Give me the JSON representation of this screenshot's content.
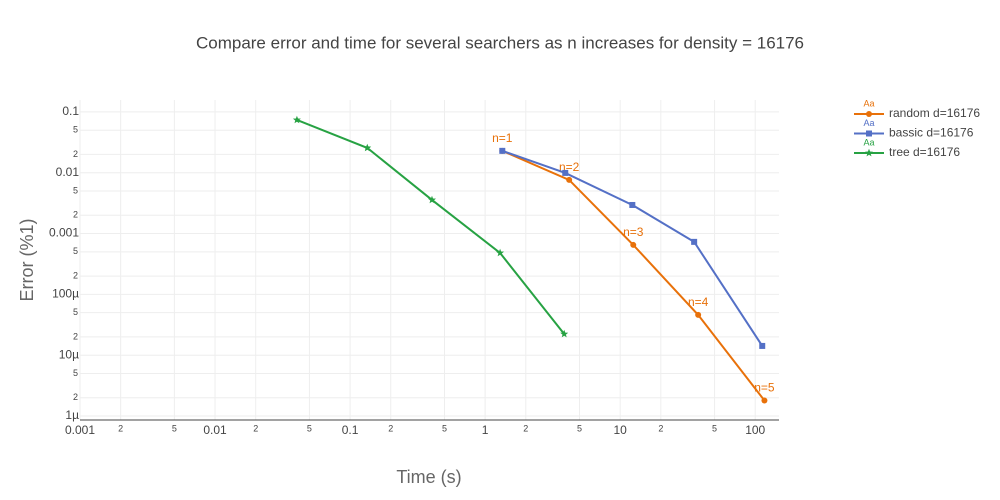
{
  "chart_data": {
    "type": "line",
    "title": "Compare error and time for several searchers as n increases for density = 16176",
    "x_label": "Time (s)",
    "y_label": "Error (%1)",
    "x_log": true,
    "y_log": true,
    "grid": true,
    "legend_position": "top-right",
    "legend_symbol_text": "Aa",
    "xlim": [
      0.001,
      150
    ],
    "ylim": [
      8.6e-07,
      0.157
    ],
    "xticks": [
      0.001,
      {
        "value": 0.002,
        "label": "2"
      },
      {
        "value": 0.005,
        "label": "5"
      },
      0.01,
      {
        "value": 0.02,
        "label": "2"
      },
      {
        "value": 0.05,
        "label": "5"
      },
      0.1,
      {
        "value": 0.2,
        "label": "2"
      },
      {
        "value": 0.5,
        "label": "5"
      },
      1,
      {
        "value": 2,
        "label": "2"
      },
      {
        "value": 5,
        "label": "5"
      },
      10,
      {
        "value": 20,
        "label": "2"
      },
      {
        "value": 50,
        "label": "5"
      },
      100
    ],
    "yticks": [
      0.1,
      {
        "value": 0.05,
        "label": "5"
      },
      {
        "value": 0.02,
        "label": "2"
      },
      0.01,
      {
        "value": 0.005,
        "label": "5"
      },
      {
        "value": 0.002,
        "label": "2"
      },
      0.001,
      {
        "value": 0.0005,
        "label": "5"
      },
      {
        "value": 0.0002,
        "label": "2"
      },
      {
        "value": 0.0001,
        "label": "100µ"
      },
      {
        "value": 5e-05,
        "label": "5"
      },
      {
        "value": 2e-05,
        "label": "2"
      },
      {
        "value": 1e-05,
        "label": "10µ"
      },
      {
        "value": 5e-06,
        "label": "5"
      },
      {
        "value": 2e-06,
        "label": "2"
      },
      {
        "value": 1e-06,
        "label": "1µ"
      }
    ],
    "series": [
      {
        "name": "random d=16176",
        "color": "#e8710a",
        "marker": "circle",
        "x": [
          1.34,
          4.19,
          12.5,
          37.8,
          117
        ],
        "y": [
          0.0229,
          0.00762,
          0.00065,
          4.6e-05,
          1.8e-06
        ],
        "labels": [
          "n=1",
          "n=2",
          "n=3",
          "n=4",
          "n=5"
        ]
      },
      {
        "name": "bassic d=16176",
        "color": "#5470c6",
        "marker": "square",
        "x": [
          1.34,
          3.92,
          12.3,
          35.3,
          112.7
        ],
        "y": [
          0.0229,
          0.00993,
          0.00295,
          0.00073,
          1.42e-05
        ]
      },
      {
        "name": "tree d=16176",
        "color": "#27a243",
        "marker": "star",
        "x": [
          0.0404,
          0.134,
          0.404,
          1.29,
          3.85
        ],
        "y": [
          0.0738,
          0.0256,
          0.00357,
          0.00048,
          2.23e-05
        ]
      }
    ]
  }
}
